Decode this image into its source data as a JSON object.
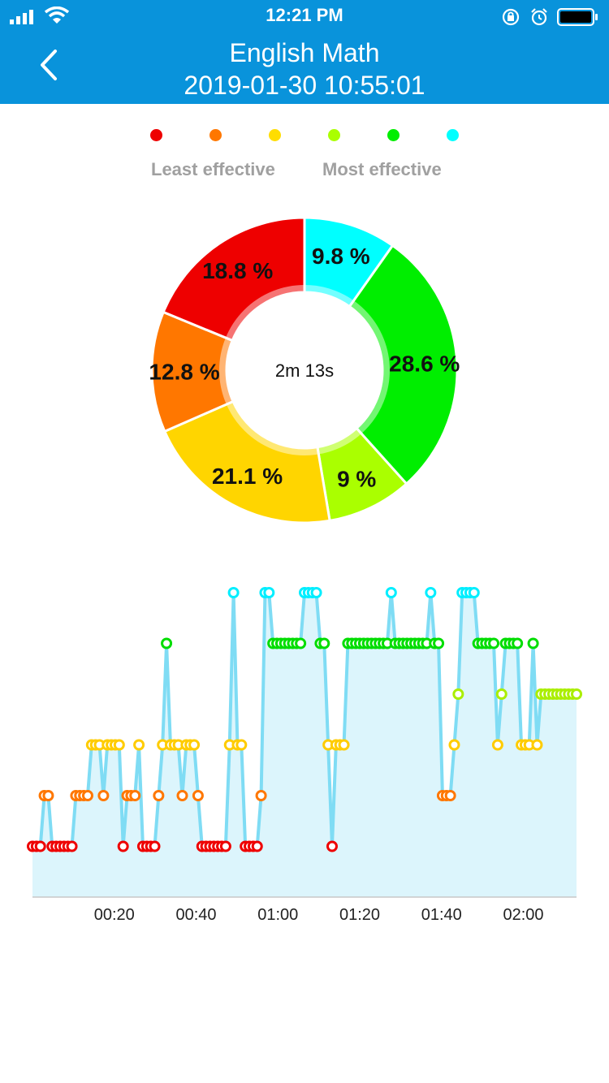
{
  "status_bar": {
    "time": "12:21 PM"
  },
  "header": {
    "title": "English Math",
    "subtitle": "2019-01-30 10:55:01"
  },
  "legend": {
    "colors": [
      "#ee0000",
      "#ff7700",
      "#ffdd00",
      "#aaff00",
      "#00ee00",
      "#00ffff"
    ],
    "least_label": "Least effective",
    "most_label": "Most effective"
  },
  "chart_data": [
    {
      "type": "pie",
      "center_label": "2m 13s",
      "slices": [
        {
          "value": 9.8,
          "label": "9.8 %",
          "color": "#00ffff"
        },
        {
          "value": 28.6,
          "label": "28.6 %",
          "color": "#00ee00"
        },
        {
          "value": 9,
          "label": "9 %",
          "color": "#aaff00"
        },
        {
          "value": 21.1,
          "label": "21.1 %",
          "color": "#ffd500"
        },
        {
          "value": 12.8,
          "label": "12.8 %",
          "color": "#ff7700"
        },
        {
          "value": 18.8,
          "label": "18.8 %",
          "color": "#ee0000"
        }
      ]
    },
    {
      "type": "line",
      "xlabel": "",
      "ylabel": "",
      "x_ticks": [
        "00:20",
        "00:40",
        "01:00",
        "01:20",
        "01:40",
        "02:00"
      ],
      "x_tick_values": [
        20,
        40,
        60,
        80,
        100,
        120
      ],
      "xlim": [
        0,
        133
      ],
      "ylim": [
        0,
        6
      ],
      "level_colors": [
        "#ee0000",
        "#ff7700",
        "#ffcc00",
        "#aaee00",
        "#00dd00",
        "#00eeff"
      ],
      "line_color": "#7fdcf4",
      "fill_color": "#dcf5fc",
      "levels": [
        1,
        1,
        1,
        2,
        2,
        1,
        1,
        1,
        1,
        1,
        1,
        2,
        2,
        2,
        2,
        3,
        3,
        3,
        2,
        3,
        3,
        3,
        3,
        1,
        2,
        2,
        2,
        3,
        1,
        1,
        1,
        1,
        2,
        3,
        5,
        3,
        3,
        3,
        2,
        3,
        3,
        3,
        2,
        1,
        1,
        1,
        1,
        1,
        1,
        1,
        3,
        6,
        3,
        3,
        1,
        1,
        1,
        1,
        2,
        6,
        6,
        5,
        5,
        5,
        5,
        5,
        5,
        5,
        5,
        6,
        6,
        6,
        6,
        5,
        5,
        3,
        1,
        3,
        3,
        3,
        5,
        5,
        5,
        5,
        5,
        5,
        5,
        5,
        5,
        5,
        5,
        6,
        5,
        5,
        5,
        5,
        5,
        5,
        5,
        5,
        5,
        6,
        5,
        5,
        2,
        2,
        2,
        3,
        4,
        6,
        6,
        6,
        6,
        5,
        5,
        5,
        5,
        5,
        3,
        4,
        5,
        5,
        5,
        5,
        3,
        3,
        3,
        5,
        3,
        4,
        4,
        4,
        4,
        4,
        4,
        4,
        4,
        4,
        4
      ]
    }
  ]
}
